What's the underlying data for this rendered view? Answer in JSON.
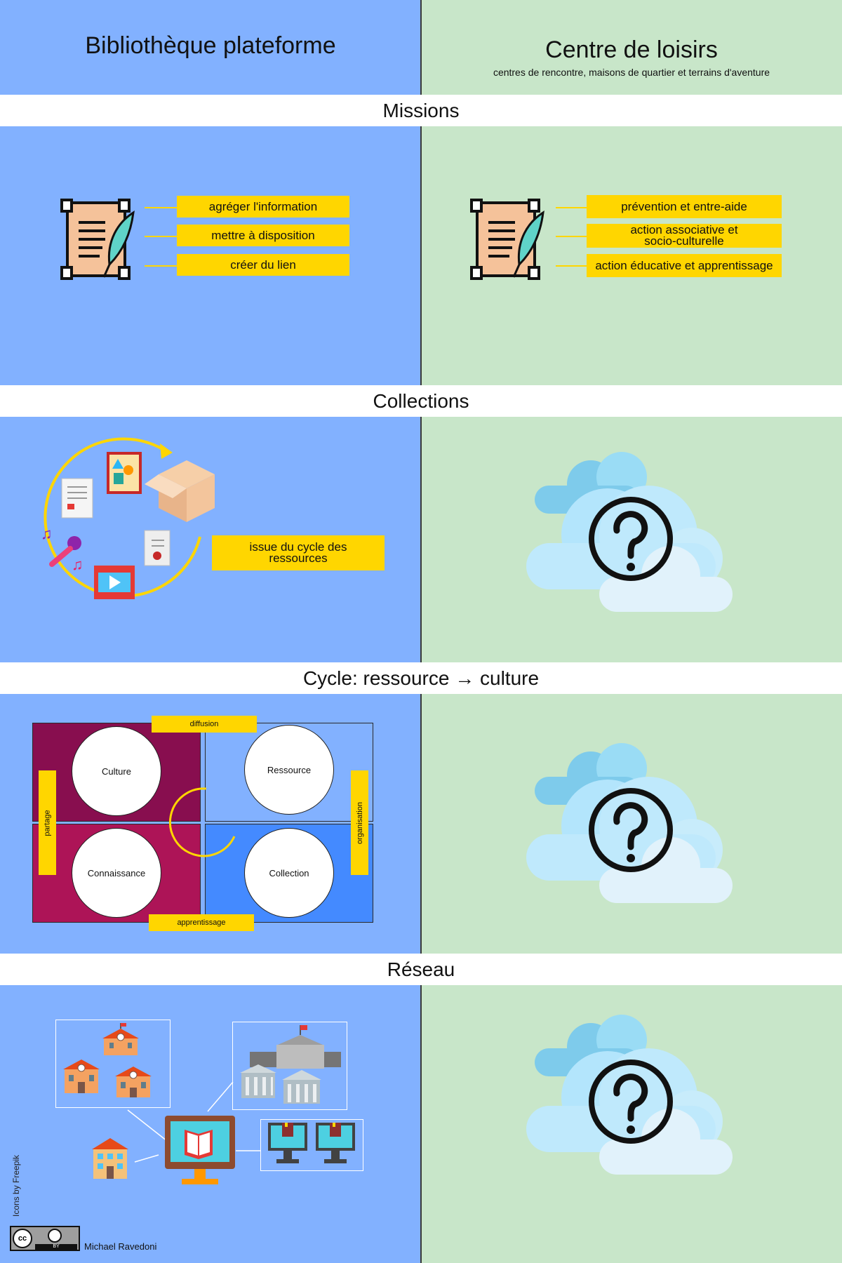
{
  "columns": {
    "left": {
      "title": "Bibliothèque plateforme"
    },
    "right": {
      "title": "Centre de loisirs",
      "subtitle": "centres de rencontre, maisons de quartier et terrains d'aventure"
    }
  },
  "sections": {
    "missions": "Missions",
    "collections": "Collections",
    "cycle": "Cycle: ressource → culture",
    "reseau": "Réseau"
  },
  "missions": {
    "left": [
      "agréger l'information",
      "mettre à disposition",
      "créer du lien"
    ],
    "right": [
      "prévention et entre-aide",
      "action associative et socio-culturelle",
      "action éducative et apprentissage"
    ]
  },
  "collections": {
    "left_label": "issue du cycle des ressources"
  },
  "cycle": {
    "quadrants": [
      "Culture",
      "Ressource",
      "Connaissance",
      "Collection"
    ],
    "edges": {
      "top": "diffusion",
      "bottom": "apprentissage",
      "left": "partage",
      "right": "organisation"
    }
  },
  "credits": {
    "icons": "Icons by Freepik",
    "author": "Michael Ravedoni",
    "license_cc": "cc",
    "license_by": "BY"
  },
  "colors": {
    "left_bg": "#82b1ff",
    "right_bg": "#c8e6c9",
    "label": "#ffd600",
    "culture": "#880e4f",
    "connaissance": "#ad1457",
    "collection": "#448aff",
    "ressource": "#82b1ff"
  }
}
